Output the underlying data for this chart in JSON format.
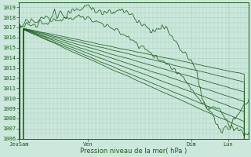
{
  "xlabel": "Pression niveau de la mer( hPa )",
  "ylim": [
    1006,
    1019.5
  ],
  "yticks": [
    1006,
    1007,
    1008,
    1009,
    1010,
    1011,
    1012,
    1013,
    1014,
    1015,
    1016,
    1017,
    1018,
    1019
  ],
  "xtick_labels": [
    "JeuSam",
    "Ven",
    "Dim",
    "Lun"
  ],
  "xtick_positions": [
    0.0,
    0.3,
    0.75,
    0.91
  ],
  "bg_color": "#cce8dc",
  "grid_color": "#aacfbf",
  "line_color": "#1a5c1a",
  "n_points": 200
}
